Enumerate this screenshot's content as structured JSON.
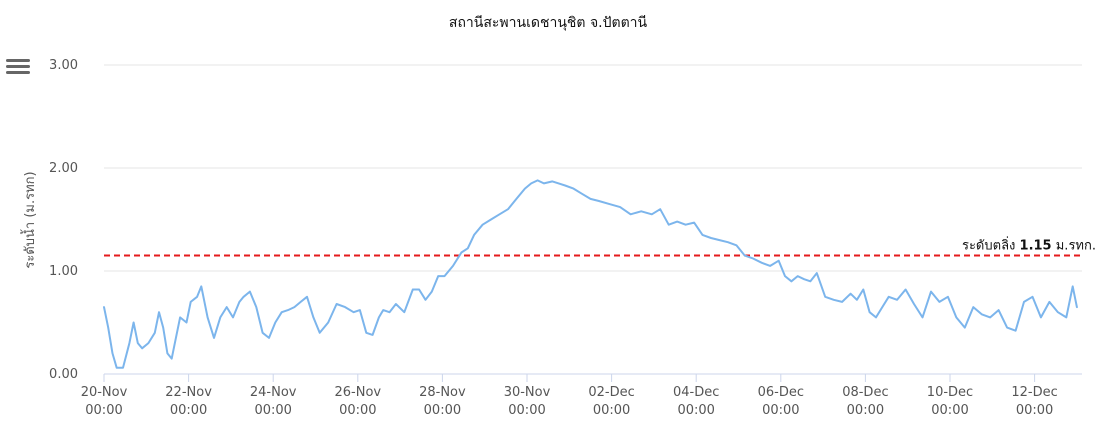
{
  "chart_data": {
    "type": "line",
    "title": "สถานีสะพานเดชานุชิต จ.ปัตตานี",
    "ylabel": "ระดับน้ำ (ม.รทก)",
    "xlabel": "",
    "ylim": [
      0,
      3
    ],
    "yticks": [
      "0.00",
      "1.00",
      "2.00",
      "3.00"
    ],
    "yticks_values": [
      0,
      1,
      2,
      3
    ],
    "xlim": [
      0,
      23
    ],
    "xticks": [
      {
        "day": "20-Nov",
        "time": "00:00",
        "value": 0
      },
      {
        "day": "22-Nov",
        "time": "00:00",
        "value": 2
      },
      {
        "day": "24-Nov",
        "time": "00:00",
        "value": 4
      },
      {
        "day": "26-Nov",
        "time": "00:00",
        "value": 6
      },
      {
        "day": "28-Nov",
        "time": "00:00",
        "value": 8
      },
      {
        "day": "30-Nov",
        "time": "00:00",
        "value": 10
      },
      {
        "day": "02-Dec",
        "time": "00:00",
        "value": 12
      },
      {
        "day": "04-Dec",
        "time": "00:00",
        "value": 14
      },
      {
        "day": "06-Dec",
        "time": "00:00",
        "value": 16
      },
      {
        "day": "08-Dec",
        "time": "00:00",
        "value": 18
      },
      {
        "day": "10-Dec",
        "time": "00:00",
        "value": 20
      },
      {
        "day": "12-Dec",
        "time": "00:00",
        "value": 22
      }
    ],
    "grid": {
      "horizontal": true,
      "vertical": false
    },
    "series": [
      {
        "color": "#7cb5ec",
        "x": [
          0,
          0.1,
          0.2,
          0.3,
          0.45,
          0.6,
          0.7,
          0.8,
          0.9,
          1.05,
          1.2,
          1.3,
          1.4,
          1.5,
          1.6,
          1.7,
          1.8,
          1.95,
          2.05,
          2.2,
          2.3,
          2.45,
          2.6,
          2.75,
          2.9,
          3.05,
          3.2,
          3.3,
          3.45,
          3.6,
          3.75,
          3.9,
          4.05,
          4.2,
          4.35,
          4.5,
          4.65,
          4.8,
          4.95,
          5.1,
          5.3,
          5.5,
          5.7,
          5.9,
          6.05,
          6.2,
          6.35,
          6.5,
          6.6,
          6.75,
          6.9,
          7.1,
          7.3,
          7.45,
          7.6,
          7.75,
          7.9,
          8.05,
          8.25,
          8.45,
          8.6,
          8.75,
          8.95,
          9.15,
          9.35,
          9.55,
          9.75,
          9.95,
          10.1,
          10.25,
          10.4,
          10.6,
          10.75,
          10.9,
          11.1,
          11.3,
          11.5,
          11.7,
          11.95,
          12.2,
          12.45,
          12.7,
          12.95,
          13.15,
          13.35,
          13.55,
          13.75,
          13.95,
          14.15,
          14.35,
          14.55,
          14.75,
          14.95,
          15.15,
          15.35,
          15.55,
          15.75,
          15.95,
          16.1,
          16.25,
          16.4,
          16.55,
          16.7,
          16.85,
          17.05,
          17.25,
          17.45,
          17.65,
          17.8,
          17.95,
          18.1,
          18.25,
          18.4,
          18.55,
          18.75,
          18.95,
          19.15,
          19.35,
          19.55,
          19.75,
          19.95,
          20.15,
          20.35,
          20.55,
          20.75,
          20.95,
          21.15,
          21.35,
          21.55,
          21.75,
          21.95,
          22.15,
          22.35,
          22.55,
          22.75,
          22.9,
          23.0
        ],
        "y": [
          0.65,
          0.45,
          0.2,
          0.06,
          0.06,
          0.3,
          0.5,
          0.3,
          0.25,
          0.3,
          0.4,
          0.6,
          0.45,
          0.2,
          0.15,
          0.35,
          0.55,
          0.5,
          0.7,
          0.75,
          0.85,
          0.55,
          0.35,
          0.55,
          0.65,
          0.55,
          0.7,
          0.75,
          0.8,
          0.65,
          0.4,
          0.35,
          0.5,
          0.6,
          0.62,
          0.65,
          0.7,
          0.75,
          0.55,
          0.4,
          0.5,
          0.68,
          0.65,
          0.6,
          0.62,
          0.4,
          0.38,
          0.55,
          0.62,
          0.6,
          0.68,
          0.6,
          0.82,
          0.82,
          0.72,
          0.8,
          0.95,
          0.95,
          1.05,
          1.18,
          1.22,
          1.35,
          1.45,
          1.5,
          1.55,
          1.6,
          1.7,
          1.8,
          1.85,
          1.88,
          1.85,
          1.87,
          1.85,
          1.83,
          1.8,
          1.75,
          1.7,
          1.68,
          1.65,
          1.62,
          1.55,
          1.58,
          1.55,
          1.6,
          1.45,
          1.48,
          1.45,
          1.47,
          1.35,
          1.32,
          1.3,
          1.28,
          1.25,
          1.15,
          1.12,
          1.08,
          1.05,
          1.1,
          0.95,
          0.9,
          0.95,
          0.92,
          0.9,
          0.98,
          0.75,
          0.72,
          0.7,
          0.78,
          0.72,
          0.82,
          0.6,
          0.55,
          0.65,
          0.75,
          0.72,
          0.82,
          0.68,
          0.55,
          0.8,
          0.7,
          0.75,
          0.55,
          0.45,
          0.65,
          0.58,
          0.55,
          0.62,
          0.45,
          0.42,
          0.7,
          0.75,
          0.55,
          0.7,
          0.6,
          0.55,
          0.85,
          0.65
        ]
      }
    ],
    "plot_lines": [
      {
        "value": 1.15,
        "color": "#e41a1c",
        "label": "ระดับตลิ่ง 1.15 ม.รทก.",
        "label_prefix": "ระดับตลิ่ง ",
        "label_value": "1.15",
        "label_suffix": " ม.รทก."
      }
    ]
  }
}
